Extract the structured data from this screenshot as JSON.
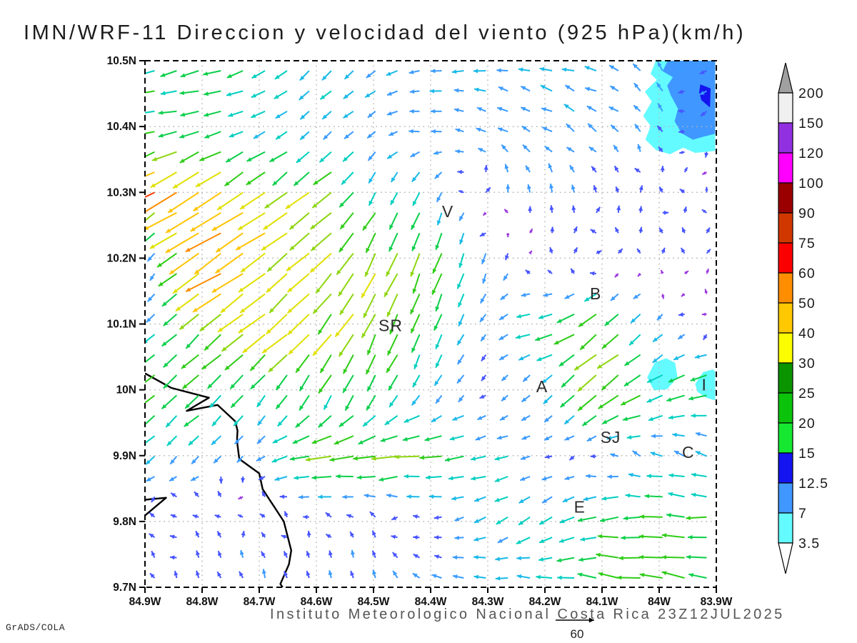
{
  "title": "IMN/WRF-11 Direccion y velocidad del viento (925 hPa)(km/h)",
  "footer": "Instituto Meteorologico Nacional Costa Rica  23Z12JUL2025",
  "credit": "GrADS/COLA",
  "reference_vector": {
    "speed": 60,
    "label": "60"
  },
  "axes": {
    "x_ticks": [
      "84.9W",
      "84.8W",
      "84.7W",
      "84.6W",
      "84.5W",
      "84.4W",
      "84.3W",
      "84.2W",
      "84.1W",
      "84W",
      "83.9W"
    ],
    "y_ticks": [
      "10.5N",
      "10.4N",
      "10.3N",
      "10.2N",
      "10.1N",
      "10N",
      "9.9N",
      "9.8N",
      "9.7N"
    ]
  },
  "colorbar": {
    "labels_top_to_bottom": [
      "200",
      "150",
      "120",
      "100",
      "90",
      "75",
      "60",
      "50",
      "40",
      "30",
      "25",
      "20",
      "15",
      "12.5",
      "7",
      "3.5"
    ],
    "block_colors_top_to_bottom": [
      "#f0f0f0",
      "#9130e0",
      "#ff00ff",
      "#9b0000",
      "#d03800",
      "#fb0000",
      "#ff8d00",
      "#ffc800",
      "#fbfd00",
      "#0a9400",
      "#0cc30c",
      "#16e832",
      "#1414f0",
      "#3f97ff",
      "#63fbff"
    ],
    "top_triangle_color": "#a0a0a0",
    "bottom_triangle_color": "#ffffff"
  },
  "chart_data": {
    "type": "quiver_map",
    "title": "IMN/WRF-11 Direccion y velocidad del viento (925 hPa)(km/h)",
    "units": "km/h",
    "level": "925 hPa",
    "valid_time": "23Z12JUL2025",
    "lon_min": -84.9,
    "lon_max": -83.9,
    "lat_min": 9.7,
    "lat_max": 10.5,
    "grid_step_deg": 0.1,
    "grid_on": true,
    "wind_grid": {
      "lons": [
        -84.9,
        -84.8,
        -84.7,
        -84.6,
        -84.5,
        -84.4,
        -84.3,
        -84.2,
        -84.1,
        -84.0,
        -83.9
      ],
      "lats": [
        10.5,
        10.4,
        10.3,
        10.2,
        10.1,
        10.0,
        9.9,
        9.8,
        9.7
      ],
      "u": [
        [
          -22,
          -20,
          -16,
          -12,
          -11,
          -12,
          -12,
          -13,
          -12,
          -7,
          -6
        ],
        [
          -24,
          -20,
          -15,
          -8,
          -9,
          -10,
          -10,
          -10,
          -9,
          -4,
          -6
        ],
        [
          -45,
          -40,
          -30,
          -26,
          -10,
          -6,
          0,
          -2,
          -2,
          2,
          -3
        ],
        [
          3,
          -42,
          -34,
          -28,
          -16,
          -10,
          -4,
          2,
          1,
          2,
          0
        ],
        [
          -8,
          -22,
          -30,
          -24,
          -14,
          -10,
          -5,
          -20,
          -24,
          -7,
          -2
        ],
        [
          -20,
          -18,
          -12,
          -10,
          -8,
          -6,
          -3,
          -8,
          -25,
          -20,
          -22
        ],
        [
          -9,
          -8,
          -5,
          -28,
          -32,
          -26,
          -18,
          -6,
          -4,
          -12,
          -10
        ],
        [
          -4,
          -3,
          -2,
          -3,
          -3,
          -4,
          -12,
          -14,
          -22,
          -26,
          -24
        ],
        [
          -2,
          -2,
          -3,
          -2,
          -2,
          -8,
          -14,
          -20,
          -24,
          -26,
          -22
        ]
      ],
      "v": [
        [
          -4,
          -6,
          -8,
          -12,
          -8,
          -2,
          0,
          2,
          3,
          9,
          -5
        ],
        [
          -3,
          -4,
          -6,
          -8,
          -6,
          2,
          5,
          6,
          6,
          7,
          -7
        ],
        [
          -28,
          -26,
          -20,
          -20,
          -16,
          -14,
          6,
          8,
          6,
          5,
          3
        ],
        [
          -2,
          -28,
          -24,
          -22,
          -30,
          -28,
          -12,
          4,
          5,
          4,
          5
        ],
        [
          -7,
          -18,
          -24,
          -26,
          -28,
          -22,
          -6,
          -4,
          -20,
          -8,
          3
        ],
        [
          -18,
          -16,
          -14,
          -20,
          -18,
          -10,
          -4,
          -8,
          -22,
          -10,
          -6
        ],
        [
          -9,
          -8,
          -5,
          -5,
          -4,
          -4,
          -3,
          -2,
          2,
          5,
          6
        ],
        [
          4,
          5,
          4,
          3,
          4,
          2,
          -6,
          -10,
          -4,
          -1,
          1
        ],
        [
          5,
          6,
          8,
          6,
          8,
          4,
          3,
          3,
          3,
          4,
          5
        ]
      ]
    },
    "speed_colors": [
      {
        "max": 3.5,
        "color": "#9b3ae0"
      },
      {
        "max": 7,
        "color": "#4755ff"
      },
      {
        "max": 12.5,
        "color": "#3b9bff"
      },
      {
        "max": 15,
        "color": "#19b9e8"
      },
      {
        "max": 20,
        "color": "#00cfc0"
      },
      {
        "max": 25,
        "color": "#0bcf4a"
      },
      {
        "max": 30,
        "color": "#2ecc16"
      },
      {
        "max": 35,
        "color": "#8ed60e"
      },
      {
        "max": 42,
        "color": "#e0e000"
      },
      {
        "max": 50,
        "color": "#ffc400"
      },
      {
        "max": 58,
        "color": "#ff8c00"
      },
      {
        "max": 70,
        "color": "#ff3a00"
      },
      {
        "max": 85,
        "color": "#fb0000"
      },
      {
        "max": 9999,
        "color": "#ff00bb"
      }
    ],
    "shaded_regions": [
      {
        "level": "3.5-7",
        "color": "#63fbff",
        "polygon_lonlat": [
          [
            -84.006,
            10.5
          ],
          [
            -84.015,
            10.48
          ],
          [
            -84.004,
            10.471
          ],
          [
            -84.025,
            10.453
          ],
          [
            -84.013,
            10.438
          ],
          [
            -84.028,
            10.416
          ],
          [
            -84.015,
            10.401
          ],
          [
            -84.024,
            10.38
          ],
          [
            -84.005,
            10.364
          ],
          [
            -83.981,
            10.358
          ],
          [
            -83.958,
            10.368
          ],
          [
            -83.937,
            10.36
          ],
          [
            -83.902,
            10.363
          ],
          [
            -83.902,
            10.5
          ]
        ]
      },
      {
        "level": "7-12.5",
        "color": "#3f97ff",
        "polygon_lonlat": [
          [
            -83.985,
            10.5
          ],
          [
            -83.994,
            10.484
          ],
          [
            -83.976,
            10.475
          ],
          [
            -83.986,
            10.462
          ],
          [
            -83.98,
            10.448
          ],
          [
            -83.967,
            10.427
          ],
          [
            -83.973,
            10.408
          ],
          [
            -83.961,
            10.39
          ],
          [
            -83.941,
            10.38
          ],
          [
            -83.921,
            10.385
          ],
          [
            -83.902,
            10.389
          ],
          [
            -83.902,
            10.5
          ]
        ]
      },
      {
        "level": "12.5-15",
        "color": "#1414f0",
        "polygon_lonlat": [
          [
            -83.928,
            10.464
          ],
          [
            -83.91,
            10.458
          ],
          [
            -83.911,
            10.429
          ],
          [
            -83.926,
            10.44
          ],
          [
            -83.93,
            10.452
          ]
        ]
      },
      {
        "level": "3.5-7",
        "color": "#63fbff",
        "polygon_lonlat": [
          [
            -84.021,
            10.019
          ],
          [
            -84.008,
            10.041
          ],
          [
            -83.988,
            10.048
          ],
          [
            -83.972,
            10.041
          ],
          [
            -83.968,
            10.019
          ],
          [
            -83.986,
            10.001
          ],
          [
            -84.009,
            9.999
          ]
        ]
      },
      {
        "level": "3.5-7",
        "color": "#63fbff",
        "polygon_lonlat": [
          [
            -83.937,
            10.009
          ],
          [
            -83.923,
            10.027
          ],
          [
            -83.906,
            10.031
          ],
          [
            -83.902,
            10.028
          ],
          [
            -83.902,
            9.984
          ],
          [
            -83.918,
            9.988
          ],
          [
            -83.933,
            9.997
          ]
        ]
      }
    ],
    "coastlines_lonlat": [
      [
        [
          -84.9,
          10.025
        ],
        [
          -84.854,
          10.003
        ],
        [
          -84.788,
          9.988
        ],
        [
          -84.827,
          9.968
        ],
        [
          -84.773,
          9.977
        ],
        [
          -84.742,
          9.952
        ],
        [
          -84.738,
          9.938
        ],
        [
          -84.739,
          9.923
        ],
        [
          -84.735,
          9.895
        ],
        [
          -84.7,
          9.873
        ],
        [
          -84.694,
          9.849
        ],
        [
          -84.657,
          9.8
        ],
        [
          -84.644,
          9.756
        ],
        [
          -84.648,
          9.735
        ],
        [
          -84.663,
          9.705
        ],
        [
          -84.659,
          9.7
        ]
      ],
      [
        [
          -84.9,
          9.833
        ],
        [
          -84.863,
          9.836
        ],
        [
          -84.9,
          9.809
        ]
      ]
    ],
    "stations": [
      {
        "label": "V",
        "lon": -84.37,
        "lat": 10.271
      },
      {
        "label": "B",
        "lon": -84.111,
        "lat": 10.146
      },
      {
        "label": "SR",
        "lon": -84.47,
        "lat": 10.098
      },
      {
        "label": "A",
        "lon": -84.205,
        "lat": 10.005
      },
      {
        "label": "SJ",
        "lon": -84.085,
        "lat": 9.928
      },
      {
        "label": "C",
        "lon": -83.949,
        "lat": 9.905
      },
      {
        "label": "E",
        "lon": -84.139,
        "lat": 9.822
      },
      {
        "label": "I",
        "lon": -83.921,
        "lat": 10.008
      }
    ]
  }
}
